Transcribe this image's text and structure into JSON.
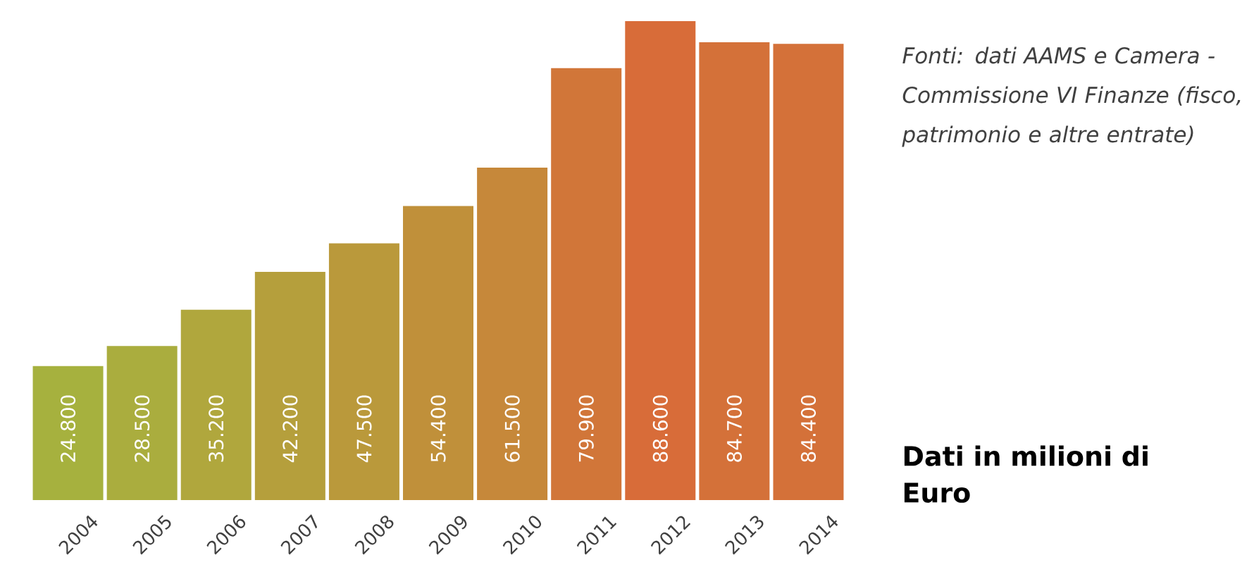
{
  "chart_data": {
    "type": "bar",
    "categories": [
      "2004",
      "2005",
      "2006",
      "2007",
      "2008",
      "2009",
      "2010",
      "2011",
      "2012",
      "2013",
      "2014"
    ],
    "values": [
      24800,
      28500,
      35200,
      42200,
      47500,
      54400,
      61500,
      79900,
      88600,
      84700,
      84400
    ],
    "value_labels": [
      "24.800",
      "28.500",
      "35.200",
      "42.200",
      "47.500",
      "54.400",
      "61.500",
      "79.900",
      "88.600",
      "84.700",
      "84.400"
    ],
    "colors": [
      "#a6b13e",
      "#aaad3e",
      "#b0a73d",
      "#b59f3c",
      "#ba993b",
      "#c0903a",
      "#c6883a",
      "#d17639",
      "#d86c39",
      "#d47139",
      "#d47139"
    ],
    "annotations": [
      "Fonti: dati AAMS e Camera - Commissione VI Finanze (fisco, patrimonio e altre entrate)",
      "Dati in milioni di Euro"
    ]
  }
}
